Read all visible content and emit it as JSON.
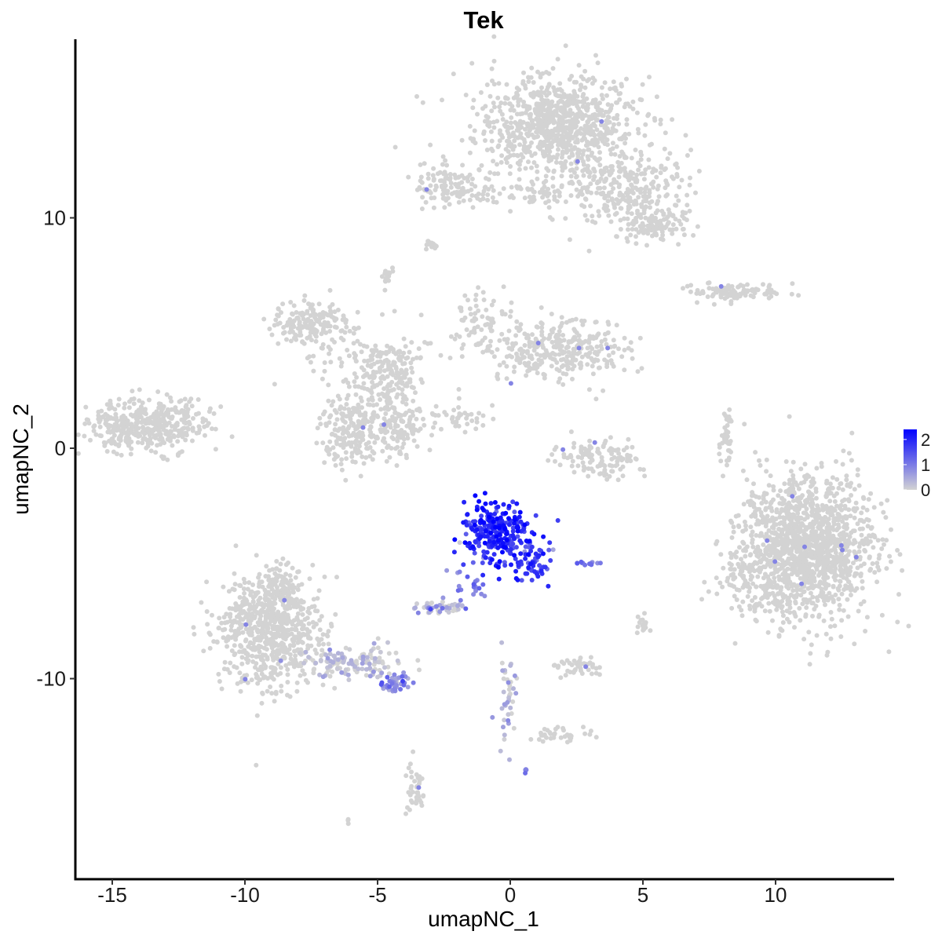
{
  "chart_data": {
    "type": "scatter",
    "title": "Tek",
    "xlabel": "umapNC_1",
    "ylabel": "umapNC_2",
    "xlim": [
      -16.4,
      14.6
    ],
    "ylim": [
      -18.5,
      17.7
    ],
    "x_ticks": [
      -15,
      -10,
      -5,
      0,
      5,
      10
    ],
    "x_tick_labels": [
      "-15",
      "-10",
      "-5",
      "0",
      "5",
      "10"
    ],
    "y_ticks": [
      -10,
      0,
      10
    ],
    "y_tick_labels": [
      "-10",
      "0",
      "10"
    ],
    "grid": false,
    "legend": {
      "placement": "right",
      "type": "colorbar",
      "range": [
        0,
        2.4
      ],
      "ticks": [
        0,
        1,
        2
      ],
      "tick_labels": [
        "0",
        "1",
        "2"
      ],
      "colors": [
        "#d3d3d3",
        "#0000ff"
      ]
    },
    "colors": {
      "low": "#d3d3d3",
      "high": "#0000ff"
    },
    "clusters": [
      {
        "name": "top",
        "cx": 1.7,
        "cy": 14.0,
        "sx": 1.5,
        "sy": 1.1,
        "n": 900,
        "expr": 0
      },
      {
        "name": "top-tail",
        "cx": 4.5,
        "cy": 11.2,
        "sx": 1.2,
        "sy": 0.9,
        "n": 280,
        "expr": 0
      },
      {
        "name": "top-right-blob",
        "cx": 5.5,
        "cy": 9.6,
        "sx": 0.5,
        "sy": 0.35,
        "n": 90,
        "expr": 0
      },
      {
        "name": "top-left-arm",
        "cx": -2.2,
        "cy": 11.4,
        "sx": 0.7,
        "sy": 0.5,
        "n": 120,
        "expr": 0
      },
      {
        "name": "top-arm-line",
        "cx": 0.7,
        "cy": 11.0,
        "sx": 1.2,
        "sy": 0.25,
        "n": 60,
        "expr": 0
      },
      {
        "name": "small-9",
        "cx": -3.0,
        "cy": 8.8,
        "sx": 0.15,
        "sy": 0.12,
        "n": 15,
        "expr": 0
      },
      {
        "name": "small-7",
        "cx": -4.6,
        "cy": 7.4,
        "sx": 0.12,
        "sy": 0.25,
        "n": 15,
        "expr": 0
      },
      {
        "name": "right-streak",
        "cx": 8.4,
        "cy": 6.8,
        "sx": 0.9,
        "sy": 0.2,
        "n": 100,
        "expr": 0
      },
      {
        "name": "mid-left",
        "cx": -7.5,
        "cy": 5.4,
        "sx": 0.7,
        "sy": 0.5,
        "n": 170,
        "expr": 0
      },
      {
        "name": "mid-branch",
        "cx": -4.8,
        "cy": 3.8,
        "sx": 1.2,
        "sy": 0.6,
        "n": 130,
        "expr": 0
      },
      {
        "name": "mid-right",
        "cx": 1.8,
        "cy": 4.3,
        "sx": 1.3,
        "sy": 0.7,
        "n": 320,
        "expr": 0
      },
      {
        "name": "mid-up",
        "cx": -1.0,
        "cy": 5.4,
        "sx": 0.6,
        "sy": 0.6,
        "n": 70,
        "expr": 0
      },
      {
        "name": "mid-lower",
        "cx": -6.0,
        "cy": 0.8,
        "sx": 0.6,
        "sy": 0.8,
        "n": 200,
        "expr": 0
      },
      {
        "name": "mid-lower2",
        "cx": -4.2,
        "cy": 1.0,
        "sx": 0.6,
        "sy": 0.6,
        "n": 140,
        "expr": 0
      },
      {
        "name": "mid-stem",
        "cx": -4.5,
        "cy": 2.8,
        "sx": 0.6,
        "sy": 0.7,
        "n": 100,
        "expr": 0
      },
      {
        "name": "diag-line",
        "cx": -2.0,
        "cy": 1.3,
        "sx": 0.7,
        "sy": 0.25,
        "n": 35,
        "expr": 0
      },
      {
        "name": "far-left",
        "cx": -13.7,
        "cy": 1.0,
        "sx": 1.1,
        "sy": 0.6,
        "n": 420,
        "expr": 0
      },
      {
        "name": "center-small",
        "cx": 3.3,
        "cy": -0.5,
        "sx": 0.8,
        "sy": 0.4,
        "n": 120,
        "expr": 0
      },
      {
        "name": "right-thin",
        "cx": 8.1,
        "cy": 0.2,
        "sx": 0.12,
        "sy": 0.7,
        "n": 40,
        "expr": 0
      },
      {
        "name": "big-right",
        "cx": 11.2,
        "cy": -4.3,
        "sx": 1.2,
        "sy": 1.5,
        "n": 1400,
        "expr": 0
      },
      {
        "name": "big-right-left",
        "cx": 9.0,
        "cy": -5.5,
        "sx": 0.6,
        "sy": 0.8,
        "n": 120,
        "expr": 0
      },
      {
        "name": "left-bottom",
        "cx": -9.0,
        "cy": -8.0,
        "sx": 1.0,
        "sy": 1.2,
        "n": 650,
        "expr": 0
      },
      {
        "name": "left-bottom-top",
        "cx": -8.7,
        "cy": -6.1,
        "sx": 0.5,
        "sy": 0.5,
        "n": 120,
        "expr": 0
      },
      {
        "name": "left-tail",
        "cx": -6.0,
        "cy": -9.3,
        "sx": 1.0,
        "sy": 0.35,
        "n": 130,
        "expr": 0.1
      },
      {
        "name": "left-tail-end",
        "cx": -4.3,
        "cy": -10.2,
        "sx": 0.35,
        "sy": 0.2,
        "n": 45,
        "expr": 0.8
      },
      {
        "name": "expr-main",
        "cx": -0.5,
        "cy": -3.7,
        "sx": 0.6,
        "sy": 0.7,
        "n": 260,
        "expr": 1.9
      },
      {
        "name": "expr-arm",
        "cx": 0.8,
        "cy": -4.9,
        "sx": 0.35,
        "sy": 0.45,
        "n": 60,
        "expr": 1.6
      },
      {
        "name": "expr-stalk",
        "cx": -1.5,
        "cy": -6.0,
        "sx": 0.4,
        "sy": 0.6,
        "n": 25,
        "expr": 0.9
      },
      {
        "name": "expr-small",
        "cx": -2.6,
        "cy": -6.9,
        "sx": 0.45,
        "sy": 0.15,
        "n": 45,
        "expr": 0.3
      },
      {
        "name": "expr-right-bit",
        "cx": 2.8,
        "cy": -5.0,
        "sx": 0.3,
        "sy": 0.07,
        "n": 12,
        "expr": 1.0
      },
      {
        "name": "lower-center",
        "cx": 2.6,
        "cy": -9.5,
        "sx": 0.4,
        "sy": 0.25,
        "n": 45,
        "expr": 0
      },
      {
        "name": "lower-right-bits",
        "cx": 5.0,
        "cy": -7.5,
        "sx": 0.12,
        "sy": 0.3,
        "n": 18,
        "expr": 0
      },
      {
        "name": "lower-stem",
        "cx": -0.1,
        "cy": -10.8,
        "sx": 0.2,
        "sy": 1.0,
        "n": 40,
        "expr": 0.2
      },
      {
        "name": "lower-right-line",
        "cx": 2.0,
        "cy": -12.5,
        "sx": 0.6,
        "sy": 0.15,
        "n": 35,
        "expr": 0
      },
      {
        "name": "bottom-small",
        "cx": -3.6,
        "cy": -14.8,
        "sx": 0.2,
        "sy": 0.6,
        "n": 40,
        "expr": 0
      },
      {
        "name": "bottom-pair",
        "cx": 0.6,
        "cy": -14.0,
        "sx": 0.05,
        "sy": 0.05,
        "n": 4,
        "expr": 1.0
      },
      {
        "name": "bottom-tiny",
        "cx": -6.1,
        "cy": -16.2,
        "sx": 0.05,
        "sy": 0.05,
        "n": 3,
        "expr": 0
      }
    ]
  }
}
